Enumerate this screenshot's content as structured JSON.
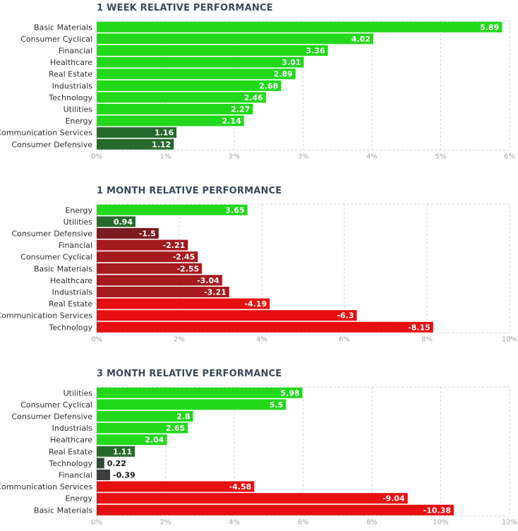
{
  "chart_data": [
    {
      "type": "bar",
      "orientation": "horizontal",
      "title": "1 WEEK RELATIVE PERFORMANCE",
      "categories": [
        "Basic Materials",
        "Consumer Cyclical",
        "Financial",
        "Healthcare",
        "Real Estate",
        "Industrials",
        "Technology",
        "Utilities",
        "Energy",
        "Communication Services",
        "Consumer Defensive"
      ],
      "values": [
        5.89,
        4.02,
        3.36,
        3.01,
        2.89,
        2.68,
        2.46,
        2.27,
        2.14,
        1.16,
        1.12
      ],
      "value_labels": [
        "5.89",
        "4.02",
        "3.36",
        "3.01",
        "2.89",
        "2.68",
        "2.46",
        "2.27",
        "2.14",
        "1.16",
        "1.12"
      ],
      "xlim": [
        0,
        6
      ],
      "xticks": [
        0,
        1,
        2,
        3,
        4,
        5,
        6
      ],
      "xtick_labels": [
        "0%",
        "1%",
        "2%",
        "3%",
        "4%",
        "5%",
        "6%"
      ],
      "grid": true
    },
    {
      "type": "bar",
      "orientation": "horizontal",
      "title": "1 MONTH RELATIVE PERFORMANCE",
      "categories": [
        "Energy",
        "Utilities",
        "Consumer Defensive",
        "Financial",
        "Consumer Cyclical",
        "Basic Materials",
        "Healthcare",
        "Industrials",
        "Real Estate",
        "Communication Services",
        "Technology"
      ],
      "values": [
        3.65,
        0.94,
        -1.5,
        -2.21,
        -2.45,
        -2.55,
        -3.04,
        -3.21,
        -4.19,
        -6.3,
        -8.15
      ],
      "value_labels": [
        "3.65",
        "0.94",
        "-1.5",
        "-2.21",
        "-2.45",
        "-2.55",
        "-3.04",
        "-3.21",
        "-4.19",
        "-6.3",
        "-8.15"
      ],
      "xlim": [
        0,
        10
      ],
      "xticks": [
        0,
        2,
        4,
        6,
        8,
        10
      ],
      "xtick_labels": [
        "0%",
        "2%",
        "4%",
        "6%",
        "8%",
        "10%"
      ],
      "grid": true
    },
    {
      "type": "bar",
      "orientation": "horizontal",
      "title": "3 MONTH RELATIVE PERFORMANCE",
      "categories": [
        "Utilities",
        "Consumer Cyclical",
        "Consumer Defensive",
        "Industrials",
        "Healthcare",
        "Real Estate",
        "Technology",
        "Financial",
        "Communication Services",
        "Energy",
        "Basic Materials"
      ],
      "values": [
        5.98,
        5.5,
        2.8,
        2.65,
        2.04,
        1.11,
        0.22,
        -0.39,
        -4.58,
        -9.04,
        -10.38
      ],
      "value_labels": [
        "5.98",
        "5.5",
        "2.8",
        "2.65",
        "2.04",
        "1.11",
        "0.22",
        "-0.39",
        "-4.58",
        "-9.04",
        "-10.38"
      ],
      "xlim": [
        0,
        12
      ],
      "xticks": [
        0,
        2,
        4,
        6,
        8,
        10,
        12
      ],
      "xtick_labels": [
        "0%",
        "2%",
        "4%",
        "6%",
        "8%",
        "10%",
        "12%"
      ],
      "grid": true
    }
  ],
  "colors": {
    "pos_strong": "#22d81b",
    "pos_mid": "#1aa824",
    "pos_weak": "#276b2c",
    "pos_faint": "#2f4a32",
    "neg_faint": "#3d3d3d",
    "neg_weak": "#7a1c1f",
    "neg_mid": "#a51a1d",
    "neg_strong": "#e60f11",
    "grid": "#d6d6d6",
    "tick_text": "#a0a4a8",
    "label_text": "#2b2f33"
  }
}
